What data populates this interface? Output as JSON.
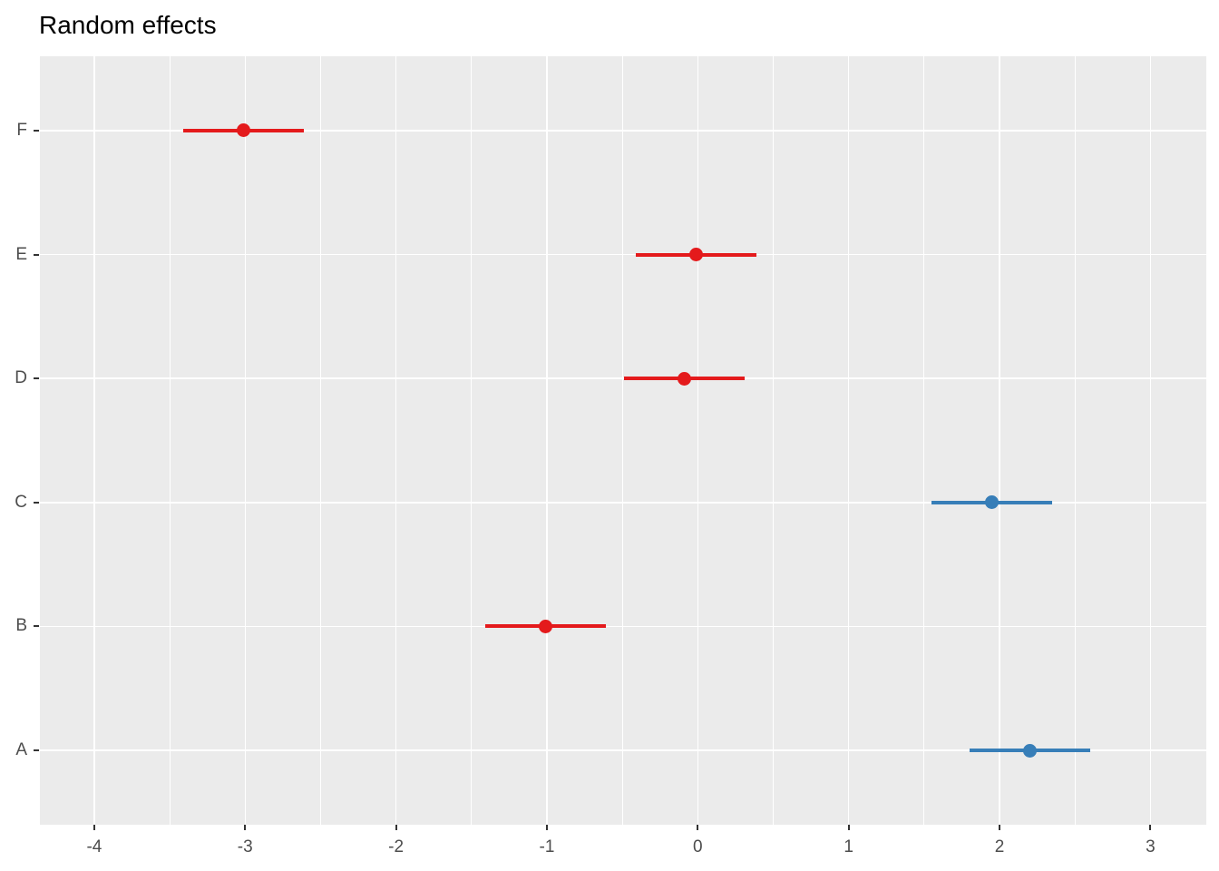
{
  "colors": {
    "positive": "#377EB8",
    "negative": "#E41A1C",
    "panel_bg": "#EBEBEB",
    "gridline": "#FFFFFF",
    "axis_text": "#4D4D4D",
    "tick_mark": "#333333",
    "title_color": "#000000"
  },
  "chart_data": {
    "type": "scatter",
    "subtype": "dot-and-whisker",
    "orientation": "horizontal",
    "title": "Random effects",
    "xlabel": "",
    "ylabel": "",
    "legend": "none",
    "grid": true,
    "xlim": [
      -4.36,
      3.37
    ],
    "x_ticks": [
      -4,
      -3,
      -2,
      -1,
      0,
      1,
      2,
      3
    ],
    "x_minor_ticks": [
      -3.5,
      -2.5,
      -1.5,
      -0.5,
      0.5,
      1.5,
      2.5
    ],
    "categories": [
      "F",
      "E",
      "D",
      "C",
      "B",
      "A"
    ],
    "points": [
      {
        "label": "F",
        "estimate": -3.01,
        "ci_low": -3.41,
        "ci_high": -2.61,
        "group": "negative"
      },
      {
        "label": "E",
        "estimate": -0.01,
        "ci_low": -0.41,
        "ci_high": 0.39,
        "group": "negative"
      },
      {
        "label": "D",
        "estimate": -0.09,
        "ci_low": -0.49,
        "ci_high": 0.31,
        "group": "negative"
      },
      {
        "label": "C",
        "estimate": 1.95,
        "ci_low": 1.55,
        "ci_high": 2.35,
        "group": "positive"
      },
      {
        "label": "B",
        "estimate": -1.01,
        "ci_low": -1.41,
        "ci_high": -0.61,
        "group": "negative"
      },
      {
        "label": "A",
        "estimate": 2.2,
        "ci_low": 1.8,
        "ci_high": 2.6,
        "group": "positive"
      }
    ]
  }
}
